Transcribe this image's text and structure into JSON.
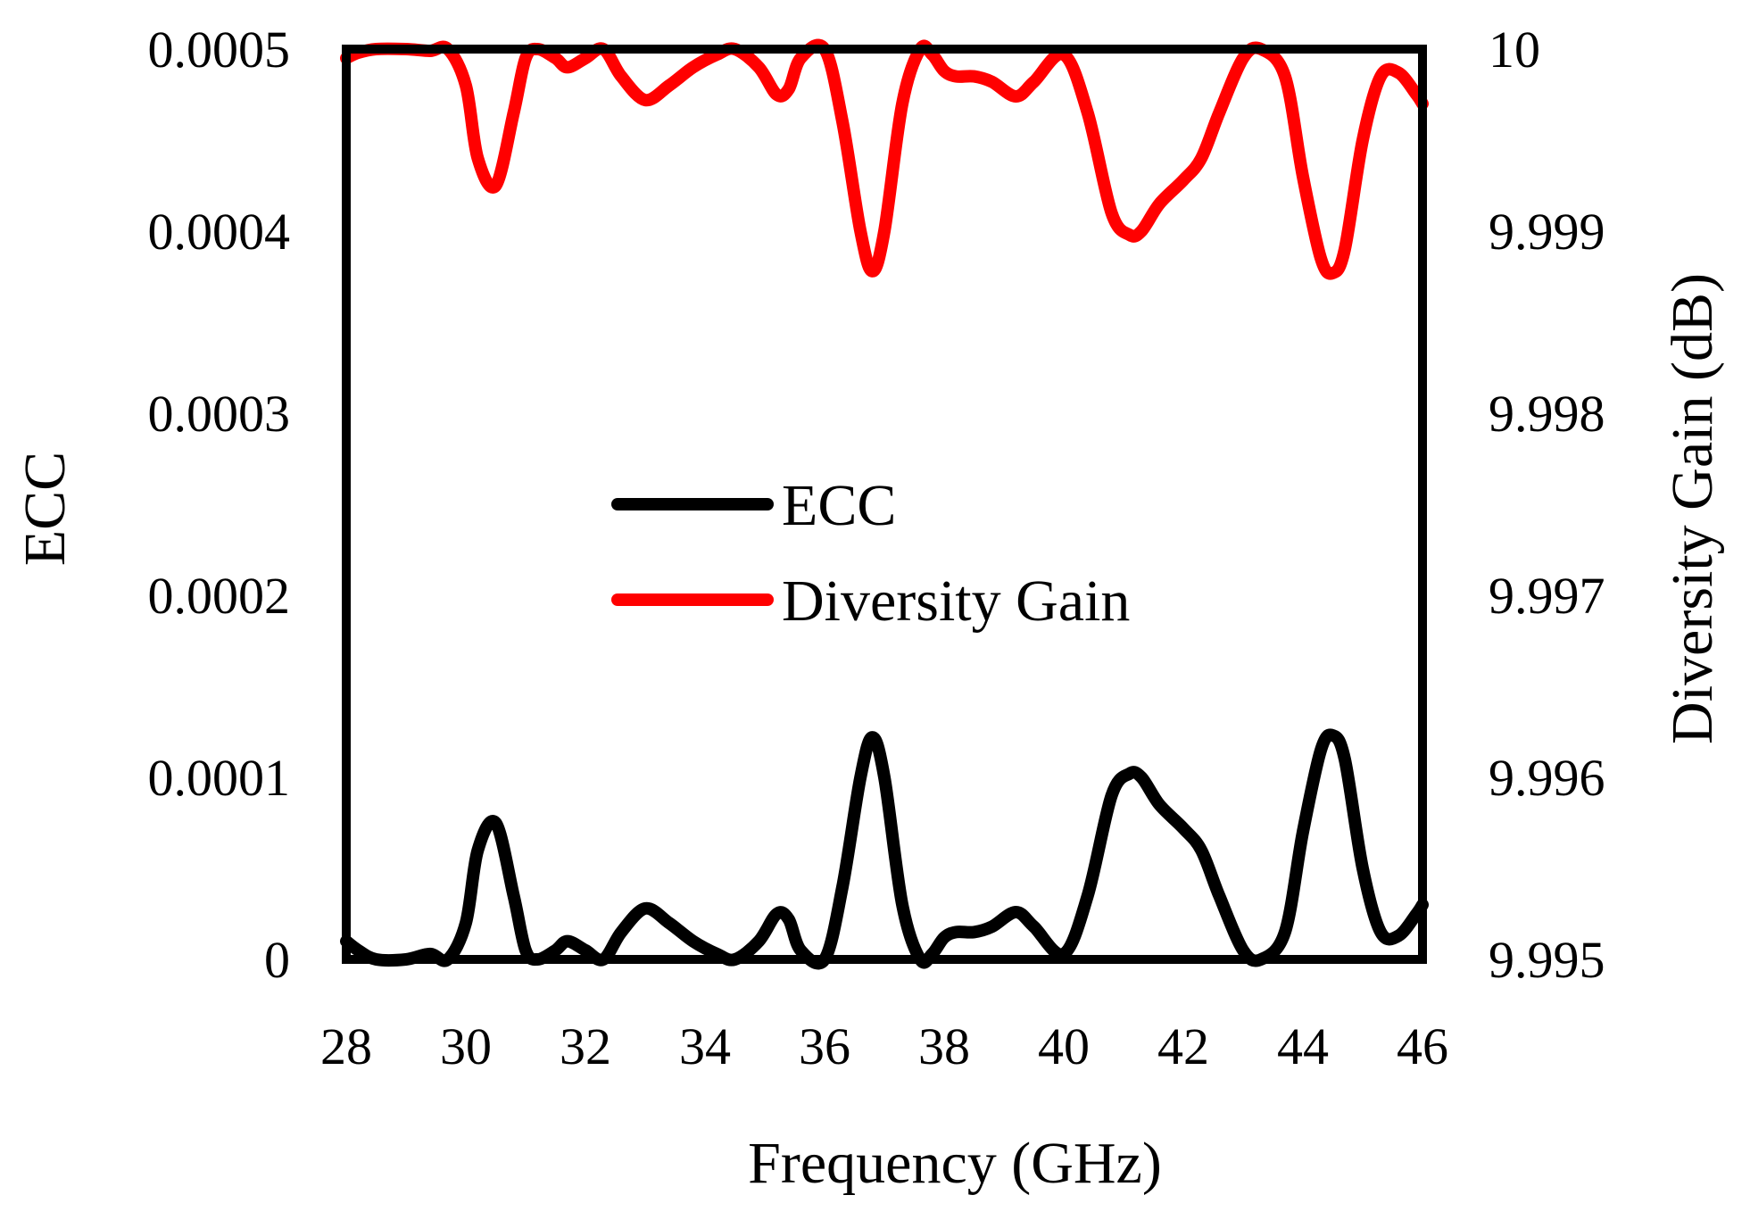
{
  "chart_data": {
    "type": "line",
    "xlabel": "Frequency (GHz)",
    "ylabel_left": "ECC",
    "ylabel_right": "Diversity Gain (dB)",
    "xlim": [
      28,
      46
    ],
    "ylim_left": [
      0,
      0.0005
    ],
    "ylim_right": [
      9.995,
      10
    ],
    "x_ticks": [
      "28",
      "30",
      "32",
      "34",
      "36",
      "38",
      "40",
      "42",
      "44",
      "46"
    ],
    "y_left_ticks": [
      "0",
      "0.0001",
      "0.0002",
      "0.0003",
      "0.0004",
      "0.0005"
    ],
    "y_right_ticks": [
      "9.995",
      "9.996",
      "9.997",
      "9.998",
      "9.999",
      "10"
    ],
    "grid": false,
    "legend_position": "center-left",
    "series": [
      {
        "name": "ECC",
        "axis": "left",
        "color": "#000000",
        "x": [
          28,
          28.2,
          28.5,
          29,
          29.4,
          29.7,
          30,
          30.2,
          30.5,
          30.8,
          31,
          31.2,
          31.5,
          31.7,
          32,
          32.3,
          32.6,
          33,
          33.4,
          33.8,
          34.2,
          34.5,
          34.9,
          35.2,
          35.4,
          35.6,
          36,
          36.3,
          36.6,
          36.8,
          37,
          37.3,
          37.6,
          37.8,
          38,
          38.2,
          38.5,
          38.8,
          39.2,
          39.5,
          40,
          40.4,
          40.8,
          41.1,
          41.3,
          41.6,
          42,
          42.3,
          42.6,
          43,
          43.3,
          43.7,
          44,
          44.3,
          44.5,
          44.7,
          45,
          45.3,
          45.6,
          45.9,
          46
        ],
        "values": [
          1e-05,
          5e-06,
          0,
          0,
          3e-06,
          0,
          2e-05,
          6e-05,
          7.5e-05,
          3.5e-05,
          5e-06,
          0,
          5e-06,
          1e-05,
          5e-06,
          0,
          1.5e-05,
          2.8e-05,
          2e-05,
          1e-05,
          3e-06,
          0,
          1e-05,
          2.5e-05,
          2.2e-05,
          5e-06,
          0,
          4e-05,
          0.0001,
          0.000122,
          0.0001,
          3e-05,
          0,
          3e-06,
          1.2e-05,
          1.5e-05,
          1.5e-05,
          1.8e-05,
          2.6e-05,
          1.8e-05,
          3e-06,
          3.5e-05,
          9e-05,
          0.000102,
          0.0001,
          8.5e-05,
          7.2e-05,
          6e-05,
          3.5e-05,
          5e-06,
          0,
          1.5e-05,
          7e-05,
          0.000115,
          0.000123,
          0.00011,
          5e-05,
          1.5e-05,
          1.3e-05,
          2.5e-05,
          3e-05
        ]
      },
      {
        "name": "Diversity Gain",
        "axis": "right",
        "color": "#ff0000",
        "x": [
          28,
          28.2,
          28.5,
          29,
          29.4,
          29.7,
          30,
          30.2,
          30.5,
          30.8,
          31,
          31.2,
          31.5,
          31.7,
          32,
          32.3,
          32.6,
          33,
          33.4,
          33.8,
          34.2,
          34.5,
          34.9,
          35.2,
          35.4,
          35.6,
          36,
          36.3,
          36.6,
          36.8,
          37,
          37.3,
          37.6,
          37.8,
          38,
          38.2,
          38.5,
          38.8,
          39.2,
          39.5,
          40,
          40.4,
          40.8,
          41.1,
          41.3,
          41.6,
          42,
          42.3,
          42.6,
          43,
          43.3,
          43.7,
          44,
          44.3,
          44.5,
          44.7,
          45,
          45.3,
          45.6,
          45.9,
          46
        ],
        "values": [
          9.99995,
          9.99998,
          10,
          10,
          9.99999,
          10,
          9.9998,
          9.9994,
          9.99925,
          9.99965,
          9.99995,
          10,
          9.99995,
          9.9999,
          9.99995,
          10,
          9.99985,
          9.99972,
          9.9998,
          9.9999,
          9.99997,
          10,
          9.9999,
          9.99975,
          9.99978,
          9.99995,
          10,
          9.9996,
          9.999,
          9.99878,
          9.999,
          9.9997,
          10,
          9.99997,
          9.99988,
          9.99985,
          9.99985,
          9.99982,
          9.99974,
          9.99982,
          9.99997,
          9.99965,
          9.9991,
          9.99898,
          9.999,
          9.99915,
          9.99928,
          9.9994,
          9.99965,
          9.99995,
          10,
          9.99985,
          9.9993,
          9.99885,
          9.99877,
          9.9989,
          9.9995,
          9.99985,
          9.99987,
          9.99975,
          9.9997
        ]
      }
    ]
  }
}
